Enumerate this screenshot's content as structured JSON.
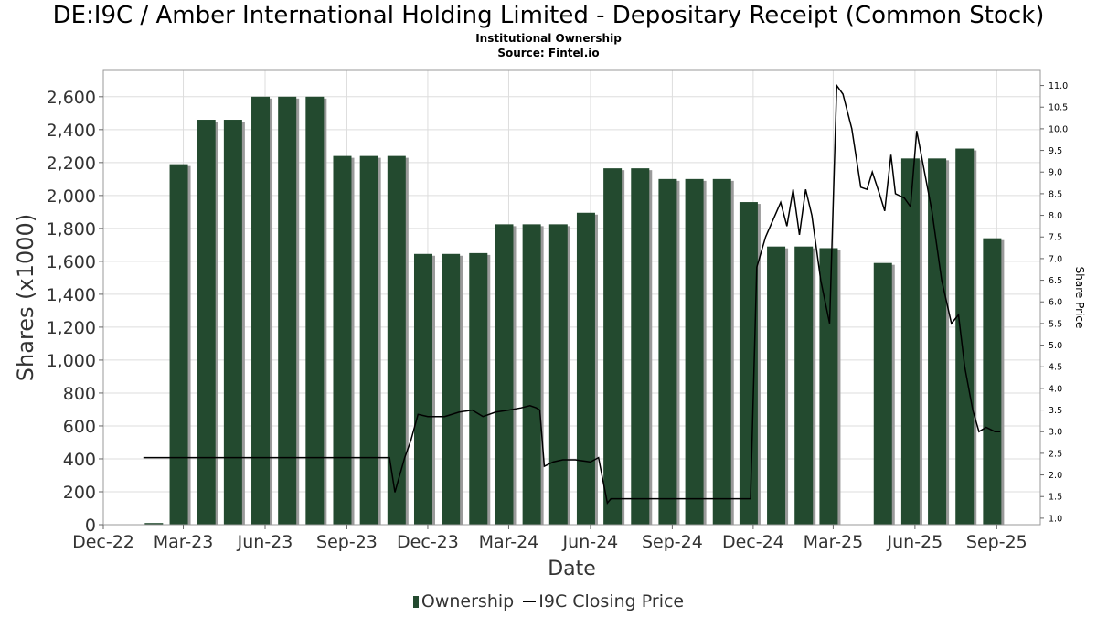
{
  "title": "DE:I9C / Amber International Holding Limited - Depositary Receipt (Common Stock)",
  "subtitle1": "Institutional Ownership",
  "subtitle2": "Source: Fintel.io",
  "colors": {
    "bar": "#234a2f",
    "bar_shadow": "#9a9a9a",
    "line": "#000000",
    "grid": "#dddddd"
  },
  "legend": {
    "ownership": "Ownership",
    "price": "I9C Closing Price",
    "placement": "bottom-center"
  },
  "chart_data": {
    "type": "bar",
    "title": "DE:I9C / Amber International Holding Limited - Depositary Receipt (Common Stock)",
    "xlabel": "Date",
    "ylabel": "Shares (x1000)",
    "y2label": "Share Price",
    "grid": true,
    "xlim": [
      "2022-12-01",
      "2025-10-20"
    ],
    "ylim": [
      0,
      2760
    ],
    "y2lim": [
      0.85,
      11.35
    ],
    "x_ticks": [
      "2022-12-01",
      "2023-03-01",
      "2023-06-01",
      "2023-09-01",
      "2023-12-01",
      "2024-03-01",
      "2024-06-01",
      "2024-09-01",
      "2024-12-01",
      "2025-03-01",
      "2025-06-01",
      "2025-09-01"
    ],
    "x_tick_labels": [
      "Dec-22",
      "Mar-23",
      "Jun-23",
      "Sep-23",
      "Dec-23",
      "Mar-24",
      "Jun-24",
      "Sep-24",
      "Dec-24",
      "Mar-25",
      "Jun-25",
      "Sep-25"
    ],
    "y_ticks": [
      0,
      200,
      400,
      600,
      800,
      1000,
      1200,
      1400,
      1600,
      1800,
      2000,
      2200,
      2400,
      2600
    ],
    "y_tick_labels": [
      "0",
      "200",
      "400",
      "600",
      "800",
      "1,000",
      "1,200",
      "1,400",
      "1,600",
      "1,800",
      "2,000",
      "2,200",
      "2,400",
      "2,600"
    ],
    "y2_ticks": [
      1.0,
      1.5,
      2.0,
      2.5,
      3.0,
      3.5,
      4.0,
      4.5,
      5.0,
      5.5,
      6.0,
      6.5,
      7.0,
      7.5,
      8.0,
      8.5,
      9.0,
      9.5,
      10.0,
      10.5,
      11.0
    ],
    "y2_tick_labels": [
      "1.0",
      "1.5",
      "2.0",
      "2.5",
      "3.0",
      "3.5",
      "4.0",
      "4.5",
      "5.0",
      "5.5",
      "6.0",
      "6.5",
      "7.0",
      "7.5",
      "8.0",
      "8.5",
      "9.0",
      "9.5",
      "10.0",
      "10.5",
      "11.0"
    ],
    "series": [
      {
        "name": "Ownership",
        "type": "bar",
        "x": [
          "2023-01-31",
          "2023-02-28",
          "2023-03-31",
          "2023-04-30",
          "2023-05-31",
          "2023-06-30",
          "2023-07-31",
          "2023-08-31",
          "2023-09-30",
          "2023-10-31",
          "2023-11-30",
          "2023-12-31",
          "2024-01-31",
          "2024-02-29",
          "2024-03-31",
          "2024-04-30",
          "2024-05-31",
          "2024-06-30",
          "2024-07-31",
          "2024-08-31",
          "2024-09-30",
          "2024-10-31",
          "2024-11-30",
          "2024-12-31",
          "2025-01-31",
          "2025-02-28",
          "2025-04-30",
          "2025-05-31",
          "2025-06-30",
          "2025-07-31",
          "2025-08-31"
        ],
        "values": [
          10,
          2190,
          2460,
          2460,
          2600,
          2600,
          2600,
          2240,
          2240,
          2240,
          1645,
          1645,
          1650,
          1825,
          1825,
          1825,
          1895,
          2165,
          2165,
          2100,
          2100,
          2100,
          1960,
          1690,
          1690,
          1680,
          1590,
          2225,
          2225,
          2285,
          1740
        ]
      },
      {
        "name": "I9C Closing Price",
        "type": "line",
        "x": [
          "2023-01-15",
          "2023-02-01",
          "2023-03-01",
          "2023-04-01",
          "2023-05-01",
          "2023-06-01",
          "2023-07-01",
          "2023-08-01",
          "2023-09-01",
          "2023-10-01",
          "2023-10-19",
          "2023-10-25",
          "2023-11-05",
          "2023-11-12",
          "2023-11-20",
          "2023-12-01",
          "2023-12-20",
          "2024-01-05",
          "2024-01-20",
          "2024-02-01",
          "2024-02-15",
          "2024-03-01",
          "2024-03-15",
          "2024-03-25",
          "2024-04-01",
          "2024-04-05",
          "2024-04-10",
          "2024-04-20",
          "2024-05-01",
          "2024-05-15",
          "2024-06-01",
          "2024-06-10",
          "2024-06-20",
          "2024-06-24",
          "2024-07-05",
          "2024-08-01",
          "2024-09-01",
          "2024-10-01",
          "2024-11-01",
          "2024-11-20",
          "2024-11-28",
          "2024-12-05",
          "2024-12-15",
          "2025-01-01",
          "2025-01-08",
          "2025-01-15",
          "2025-01-22",
          "2025-01-29",
          "2025-02-05",
          "2025-02-15",
          "2025-02-25",
          "2025-03-05",
          "2025-03-12",
          "2025-03-22",
          "2025-04-01",
          "2025-04-08",
          "2025-04-14",
          "2025-04-22",
          "2025-04-28",
          "2025-05-05",
          "2025-05-10",
          "2025-05-20",
          "2025-05-27",
          "2025-06-03",
          "2025-06-20",
          "2025-07-01",
          "2025-07-12",
          "2025-07-20",
          "2025-07-27",
          "2025-08-05",
          "2025-08-12",
          "2025-08-20",
          "2025-08-30",
          "2025-09-05"
        ],
        "values": [
          2.4,
          2.4,
          2.4,
          2.4,
          2.4,
          2.4,
          2.4,
          2.4,
          2.4,
          2.4,
          2.4,
          1.6,
          2.4,
          2.8,
          3.4,
          3.35,
          3.35,
          3.45,
          3.5,
          3.35,
          3.45,
          3.5,
          3.55,
          3.6,
          3.55,
          3.5,
          2.2,
          2.3,
          2.35,
          2.35,
          2.3,
          2.4,
          1.35,
          1.45,
          1.45,
          1.45,
          1.45,
          1.45,
          1.45,
          1.45,
          1.45,
          6.8,
          7.5,
          8.3,
          7.75,
          8.6,
          7.55,
          8.6,
          8.0,
          6.5,
          5.5,
          11.0,
          10.8,
          10.0,
          8.65,
          8.6,
          9.0,
          8.5,
          8.1,
          9.4,
          8.5,
          8.4,
          8.2,
          9.95,
          8.1,
          6.5,
          5.5,
          5.7,
          4.5,
          3.5,
          3.0,
          3.1,
          3.0,
          3.0
        ]
      }
    ]
  }
}
